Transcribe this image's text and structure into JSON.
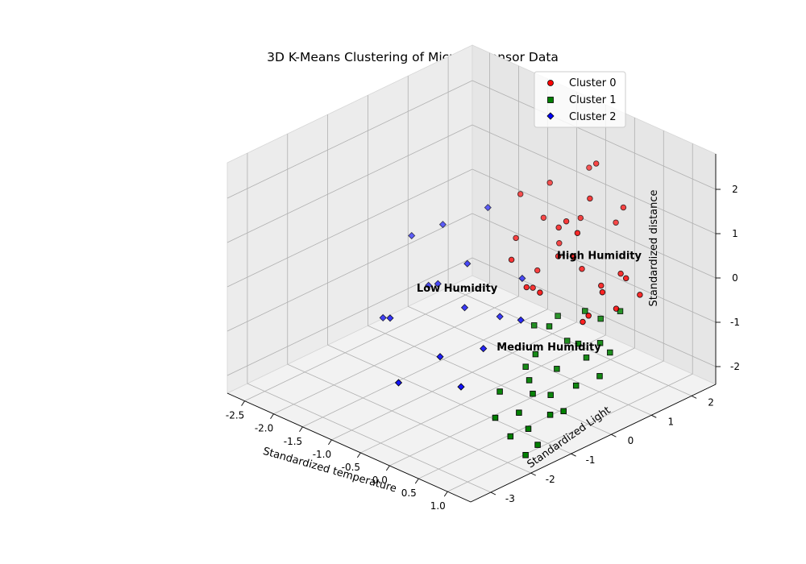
{
  "chart_data": {
    "type": "scatter",
    "title": "3D K-Means Clustering of Microbit Sensor Data",
    "xlabel": "Standardized temperature",
    "ylabel": "Standardized Light",
    "zlabel": "Standardized distance",
    "xlim": [
      -2.8,
      1.4
    ],
    "ylim": [
      -3.5,
      2.6
    ],
    "zlim": [
      -2.4,
      2.8
    ],
    "xticks": [
      "-2.5",
      "-2.0",
      "-1.5",
      "-1.0",
      "-0.5",
      "0.0",
      "0.5",
      "1.0"
    ],
    "yticks": [
      "-3",
      "-2",
      "-1",
      "0",
      "1",
      "2"
    ],
    "zticks": [
      "-2",
      "-1",
      "0",
      "1",
      "2"
    ],
    "grid": true,
    "legend_position": "top-right",
    "series": [
      {
        "name": "Cluster 0",
        "color": "#ff0000",
        "marker": "circle",
        "points": [
          [
            -0.3,
            1.9,
            1.8
          ],
          [
            0.1,
            1.5,
            2.3
          ],
          [
            0.2,
            1.2,
            1.7
          ],
          [
            0.5,
            1.6,
            1.5
          ],
          [
            -0.6,
            1.2,
            0.8
          ],
          [
            -0.2,
            1.0,
            0.9
          ],
          [
            0.0,
            0.9,
            1.2
          ],
          [
            0.3,
            1.7,
            1.0
          ],
          [
            -0.8,
            0.8,
            0.4
          ],
          [
            -0.4,
            1.3,
            0.3
          ],
          [
            0.0,
            0.7,
            0.5
          ],
          [
            0.4,
            0.5,
            0.8
          ],
          [
            -1.0,
            1.2,
            1.1
          ],
          [
            -0.6,
            0.4,
            0.2
          ],
          [
            0.2,
            1.0,
            0.2
          ],
          [
            0.6,
            0.9,
            0.1
          ],
          [
            -0.2,
            0.2,
            -0.1
          ],
          [
            0.8,
            1.1,
            0.4
          ],
          [
            1.0,
            0.7,
            -0.1
          ],
          [
            0.9,
            0.5,
            0.3
          ],
          [
            -0.5,
            0.9,
            -0.2
          ],
          [
            0.1,
            0.1,
            0.0
          ],
          [
            0.7,
            0.3,
            -0.4
          ],
          [
            1.1,
            0.8,
            0.6
          ],
          [
            -0.7,
            1.5,
            1.4
          ],
          [
            -0.1,
            1.4,
            1.0
          ],
          [
            0.4,
            0.6,
            1.3
          ],
          [
            0.8,
            0.3,
            -0.2
          ],
          [
            1.2,
            1.0,
            0.2
          ],
          [
            -0.3,
            0.5,
            -0.3
          ]
        ]
      },
      {
        "name": "Cluster 1",
        "color": "#008000",
        "marker": "square",
        "points": [
          [
            0.2,
            0.4,
            -0.6
          ],
          [
            0.5,
            0.2,
            -0.9
          ],
          [
            0.8,
            0.6,
            -0.4
          ],
          [
            1.0,
            0.3,
            -0.7
          ],
          [
            0.3,
            -0.3,
            -1.1
          ],
          [
            0.6,
            -0.2,
            -1.3
          ],
          [
            0.9,
            0.1,
            -1.0
          ],
          [
            1.1,
            0.4,
            -0.9
          ],
          [
            0.4,
            -0.6,
            -1.5
          ],
          [
            0.7,
            -0.5,
            -1.7
          ],
          [
            1.0,
            -0.3,
            -1.4
          ],
          [
            1.2,
            0.0,
            -1.2
          ],
          [
            0.1,
            -0.9,
            -1.8
          ],
          [
            0.5,
            -1.0,
            -2.0
          ],
          [
            0.8,
            -1.2,
            -2.1
          ],
          [
            1.1,
            -1.4,
            -2.2
          ],
          [
            0.0,
            0.1,
            -0.8
          ],
          [
            0.4,
            -0.1,
            -0.5
          ],
          [
            0.9,
            -0.8,
            -1.9
          ],
          [
            1.2,
            -0.9,
            -1.6
          ],
          [
            0.6,
            0.5,
            -0.3
          ],
          [
            1.0,
            0.8,
            -0.2
          ],
          [
            0.3,
            -1.3,
            -2.1
          ],
          [
            0.7,
            -1.5,
            -2.2
          ],
          [
            1.1,
            -1.7,
            -2.3
          ],
          [
            0.2,
            -0.4,
            -1.4
          ],
          [
            0.6,
            -0.8,
            -1.6
          ],
          [
            0.9,
            -0.1,
            -0.6
          ]
        ]
      },
      {
        "name": "Cluster 2",
        "color": "#0000ff",
        "marker": "diamond",
        "points": [
          [
            -2.6,
            0.8,
            -0.6
          ],
          [
            -2.4,
            -0.2,
            -1.9
          ],
          [
            -2.2,
            1.0,
            -0.2
          ],
          [
            -2.0,
            -0.6,
            -1.5
          ],
          [
            -1.8,
            0.3,
            -1.0
          ],
          [
            -1.7,
            1.4,
            0.3
          ],
          [
            -1.5,
            0.6,
            -0.5
          ],
          [
            -1.3,
            -1.4,
            -2.2
          ],
          [
            -1.2,
            0.1,
            -1.1
          ],
          [
            -1.0,
            -0.8,
            -1.7
          ],
          [
            -0.8,
            0.4,
            -1.2
          ],
          [
            -0.6,
            -0.3,
            -1.5
          ],
          [
            -0.5,
            -1.0,
            -2.0
          ],
          [
            -0.3,
            0.2,
            -0.9
          ],
          [
            -0.9,
            1.1,
            -0.7
          ],
          [
            -2.1,
            0.5,
            -1.3
          ]
        ]
      }
    ],
    "annotations": [
      {
        "text": "High Humidity",
        "at": [
          0.5,
          1.0,
          0.6
        ]
      },
      {
        "text": "Medium Humidity",
        "at": [
          0.6,
          -0.4,
          -0.8
        ]
      },
      {
        "text": "Low Humidity",
        "at": [
          -1.4,
          0.2,
          -0.9
        ]
      }
    ]
  }
}
